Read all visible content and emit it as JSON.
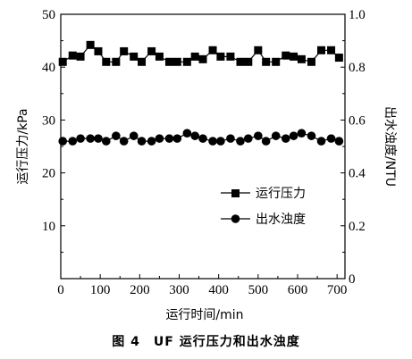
{
  "caption": "图 4　UF 运行压力和出水浊度",
  "chart_data": {
    "type": "line",
    "xlabel": "运行时间/min",
    "ylabel_left": "运行压力/kPa",
    "ylabel_right": "出水浊度/NTU",
    "xlim": [
      0,
      720
    ],
    "ylim_left": [
      0,
      50
    ],
    "ylim_right": [
      0,
      1.0
    ],
    "x_ticks": [
      0,
      100,
      200,
      300,
      400,
      500,
      600,
      700
    ],
    "y_left_ticks": [
      0,
      10,
      20,
      30,
      40,
      50
    ],
    "y_right_ticks": [
      "0",
      "0.2",
      "0.4",
      "0.6",
      "0.8",
      "1.0"
    ],
    "y_right_tick_values": [
      0,
      0.2,
      0.4,
      0.6,
      0.8,
      1.0
    ],
    "grid": false,
    "legend_position": "center-right",
    "series": [
      {
        "name": "运行压力",
        "axis": "left",
        "marker": "square",
        "x": [
          5,
          30,
          50,
          75,
          95,
          115,
          140,
          160,
          185,
          205,
          230,
          250,
          275,
          295,
          320,
          340,
          360,
          385,
          405,
          430,
          455,
          475,
          500,
          520,
          545,
          570,
          590,
          610,
          635,
          660,
          685,
          705
        ],
        "y": [
          41,
          42.2,
          42,
          44.2,
          43,
          41,
          41,
          43,
          42,
          41,
          43,
          42,
          41,
          41,
          41,
          42,
          41.5,
          43.2,
          42,
          42,
          41,
          41,
          43.2,
          41,
          41,
          42.2,
          42,
          41.5,
          41,
          43.2,
          43.2,
          41.8
        ]
      },
      {
        "name": "出水浊度",
        "axis": "right",
        "marker": "circle",
        "x": [
          5,
          30,
          50,
          75,
          95,
          115,
          140,
          160,
          185,
          205,
          230,
          250,
          275,
          295,
          320,
          340,
          360,
          385,
          405,
          430,
          455,
          475,
          500,
          520,
          545,
          570,
          590,
          610,
          635,
          660,
          685,
          705
        ],
        "y": [
          0.52,
          0.52,
          0.53,
          0.53,
          0.53,
          0.52,
          0.54,
          0.52,
          0.54,
          0.52,
          0.52,
          0.53,
          0.53,
          0.53,
          0.55,
          0.54,
          0.53,
          0.52,
          0.52,
          0.53,
          0.52,
          0.53,
          0.54,
          0.52,
          0.54,
          0.53,
          0.54,
          0.55,
          0.54,
          0.52,
          0.53,
          0.52
        ]
      }
    ]
  }
}
